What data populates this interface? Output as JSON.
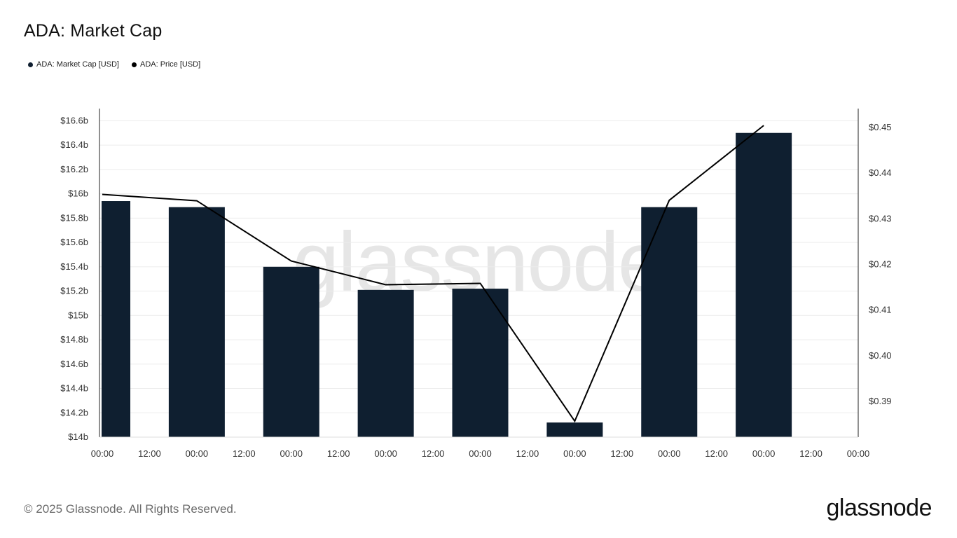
{
  "header": {
    "title": "ADA: Market Cap"
  },
  "legend": [
    {
      "label": "ADA: Market Cap [USD]",
      "color": "#0f1f30"
    },
    {
      "label": "ADA: Price [USD]",
      "color": "#000000"
    }
  ],
  "watermark": "glassnode",
  "footer": {
    "copyright": "© 2025 Glassnode. All Rights Reserved.",
    "logo": "glassnode"
  },
  "chart_data": {
    "type": "bar+line",
    "x_tick_labels": [
      "00:00",
      "12:00",
      "00:00",
      "12:00",
      "00:00",
      "12:00",
      "00:00",
      "12:00",
      "00:00",
      "12:00",
      "00:00",
      "12:00",
      "00:00",
      "12:00",
      "00:00",
      "12:00",
      "00:00"
    ],
    "left_axis": {
      "ylim": [
        14.0,
        16.7
      ],
      "ticks": [
        14.0,
        14.2,
        14.4,
        14.6,
        14.8,
        15.0,
        15.2,
        15.4,
        15.6,
        15.8,
        16.0,
        16.2,
        16.4,
        16.6
      ],
      "tick_labels": [
        "$14b",
        "$14.2b",
        "$14.4b",
        "$14.6b",
        "$14.8b",
        "$15b",
        "$15.2b",
        "$15.4b",
        "$15.6b",
        "$15.8b",
        "$16b",
        "$16.2b",
        "$16.4b",
        "$16.6b"
      ]
    },
    "right_axis": {
      "ylim": [
        0.382,
        0.454
      ],
      "ticks": [
        0.39,
        0.4,
        0.41,
        0.42,
        0.43,
        0.44,
        0.45
      ],
      "tick_labels": [
        "$0.39",
        "$0.40",
        "$0.41",
        "$0.42",
        "$0.43",
        "$0.44",
        "$0.45"
      ]
    },
    "grid": true,
    "series": [
      {
        "name": "ADA: Market Cap [USD]",
        "type": "bar",
        "axis": "left",
        "color": "#0f1f30",
        "values": [
          15.94,
          15.89,
          15.4,
          15.21,
          15.22,
          14.12,
          15.89,
          16.5
        ]
      },
      {
        "name": "ADA: Price [USD]",
        "type": "line",
        "axis": "right",
        "color": "#000000",
        "values": [
          0.4352,
          0.4338,
          0.4206,
          0.4154,
          0.4157,
          0.3855,
          0.4339,
          0.4503
        ]
      }
    ]
  }
}
